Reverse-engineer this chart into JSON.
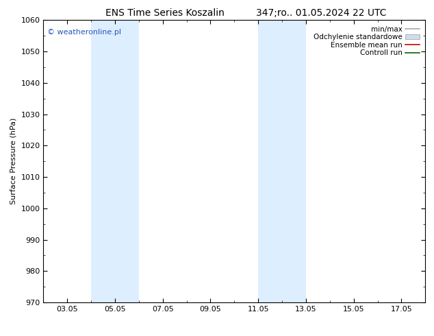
{
  "title_left": "ENS Time Series Koszalin",
  "title_right": "347;ro.. 01.05.2024 22 UTC",
  "ylabel": "Surface Pressure (hPa)",
  "ylim": [
    970,
    1060
  ],
  "yticks": [
    970,
    980,
    990,
    1000,
    1010,
    1020,
    1030,
    1040,
    1050,
    1060
  ],
  "bg_color": "#ffffff",
  "plot_bg_color": "#ffffff",
  "shaded_bands": [
    {
      "x_start": 4.0,
      "x_end": 6.0,
      "color": "#ddeeff"
    },
    {
      "x_start": 11.0,
      "x_end": 13.0,
      "color": "#ddeeff"
    }
  ],
  "xtick_labels": [
    "03.05",
    "05.05",
    "07.05",
    "09.05",
    "11.05",
    "13.05",
    "15.05",
    "17.05"
  ],
  "xtick_positions": [
    3,
    5,
    7,
    9,
    11,
    13,
    15,
    17
  ],
  "xlim": [
    2,
    18
  ],
  "watermark_text": "© weatheronline.pl",
  "watermark_color": "#2255bb",
  "legend_entries": [
    {
      "label": "min/max",
      "color": "#aaaaaa",
      "style": "line"
    },
    {
      "label": "Odchylenie standardowe",
      "color": "#ccddee",
      "style": "band"
    },
    {
      "label": "Ensemble mean run",
      "color": "#cc0000",
      "style": "line"
    },
    {
      "label": "Controll run",
      "color": "#006600",
      "style": "line"
    }
  ],
  "font_size_title": 10,
  "font_size_axis": 8,
  "font_size_legend": 7.5,
  "font_size_watermark": 8,
  "spine_color": "#000000",
  "tick_color": "#000000"
}
